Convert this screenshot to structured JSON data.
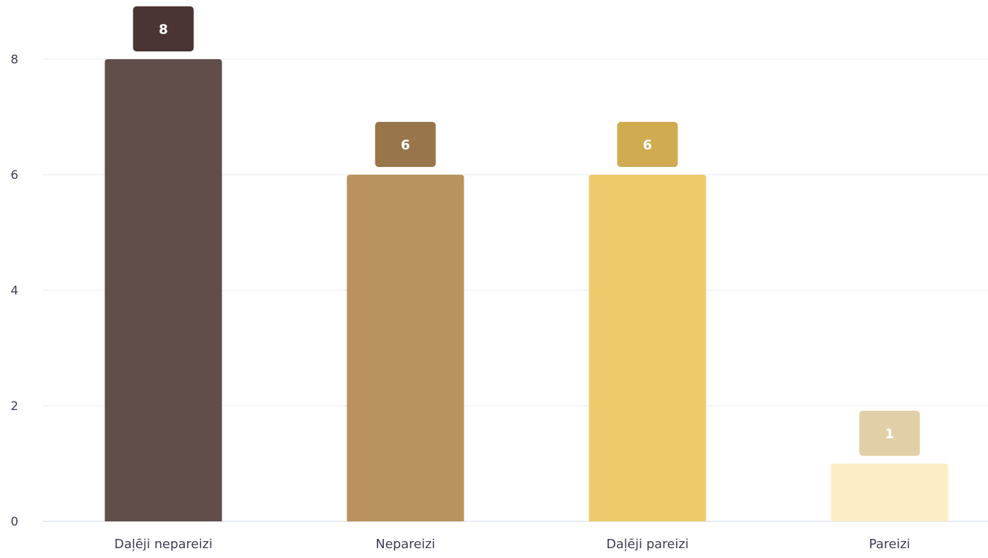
{
  "chart_data": {
    "type": "bar",
    "title": "",
    "xlabel": "",
    "ylabel": "",
    "categories": [
      "Daļēji nepareizi",
      "Nepareizi",
      "Daļēji pareizi",
      "Pareizi"
    ],
    "values": [
      8,
      6,
      6,
      1
    ],
    "data_labels": [
      "8",
      "6",
      "6",
      "1"
    ],
    "ylim": [
      0,
      8
    ],
    "yticks": [
      0,
      2,
      4,
      6,
      8
    ],
    "ytick_labels": [
      "0",
      "2",
      "4",
      "6",
      "8"
    ],
    "grid": true,
    "legend": "none",
    "bar_colors": [
      "#614e4a",
      "#b9925f",
      "#efca6c",
      "#fdedc6"
    ],
    "label_box_colors": [
      "#4a3534",
      "#98764a",
      "#d0ab51",
      "#e1d0a7"
    ],
    "grid_color": "#e6e9ed",
    "axis_color": "#ccd6eb",
    "tick_text_color": "#3d3d55"
  }
}
